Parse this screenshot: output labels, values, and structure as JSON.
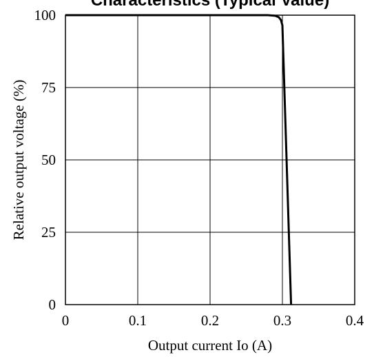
{
  "chart_data": {
    "type": "line",
    "title": "Characteristics (Typical Value)",
    "xlabel": "Output current Io (A)",
    "ylabel": "Relative output voltage (%)",
    "xlim": [
      0,
      0.4
    ],
    "ylim": [
      0,
      100
    ],
    "x_ticks": [
      0,
      0.1,
      0.2,
      0.3,
      0.4
    ],
    "x_tick_labels": [
      "0",
      "0.1",
      "0.2",
      "0.3",
      "0.4"
    ],
    "y_ticks": [
      0,
      25,
      50,
      75,
      100
    ],
    "y_tick_labels": [
      "0",
      "25",
      "50",
      "75",
      "100"
    ],
    "grid": true,
    "series": [
      {
        "x": [
          0,
          0.28,
          0.29,
          0.295,
          0.298,
          0.3,
          0.312
        ],
        "y": [
          100,
          100,
          99.8,
          99.3,
          98.3,
          96.5,
          0
        ]
      }
    ],
    "colors": {
      "line": "#000000",
      "grid": "#000000",
      "background": "#ffffff"
    }
  }
}
